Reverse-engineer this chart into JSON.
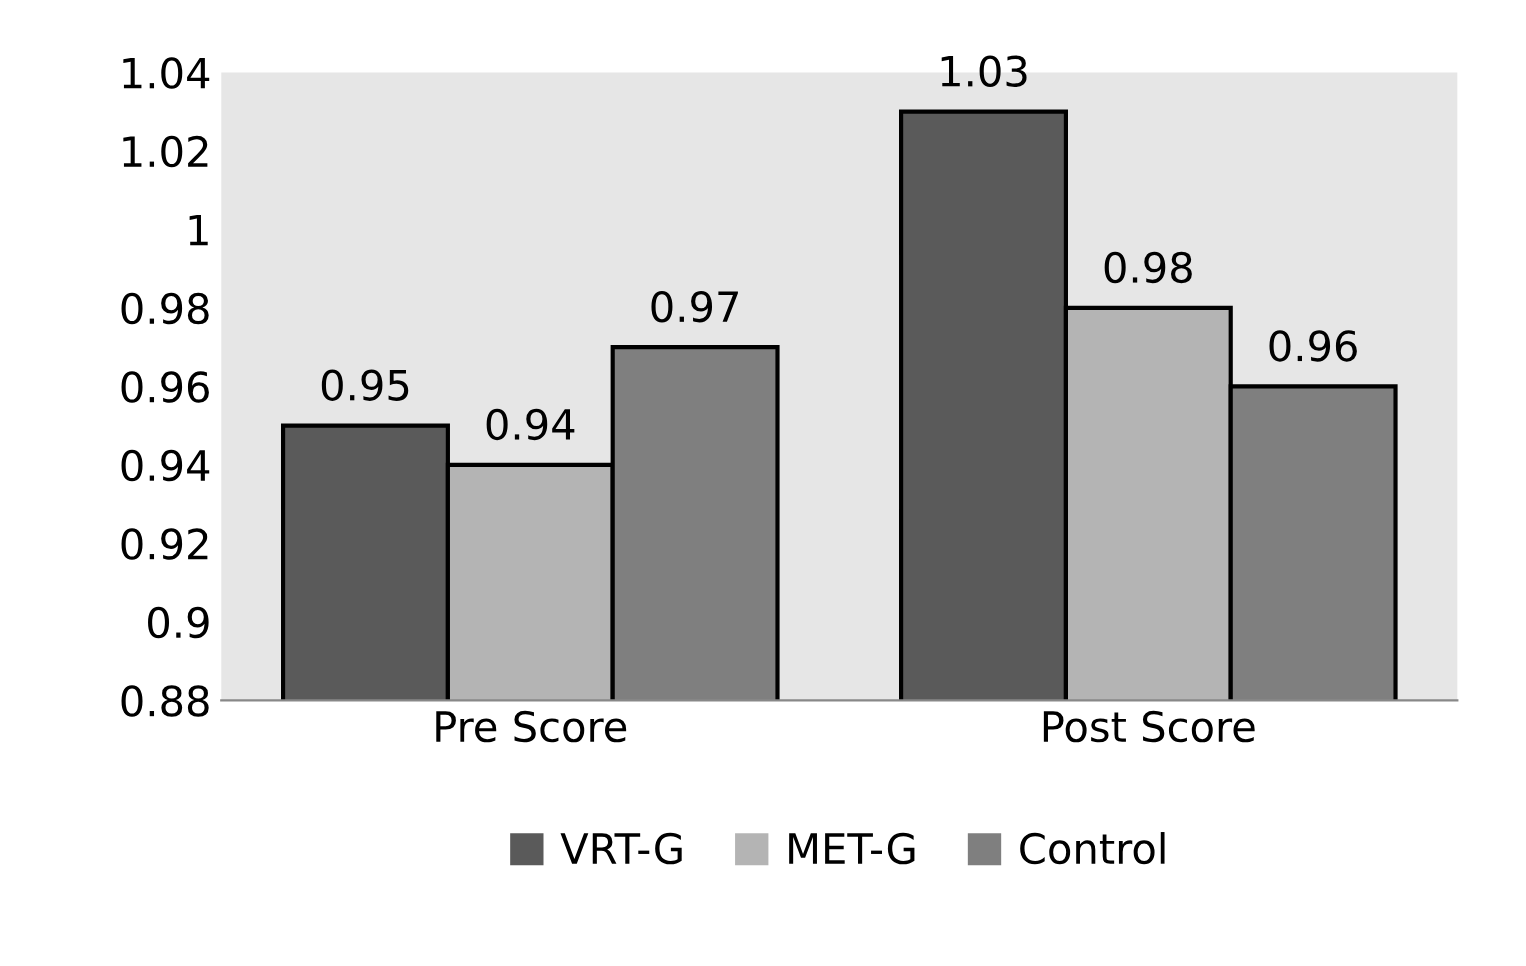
{
  "chart_data": {
    "type": "bar",
    "categories": [
      "Pre Score",
      "Post Score"
    ],
    "series": [
      {
        "name": "VRT-G",
        "color": "#5a5a5a",
        "values": [
          0.95,
          1.03
        ]
      },
      {
        "name": "MET-G",
        "color": "#b4b4b4",
        "values": [
          0.94,
          0.98
        ]
      },
      {
        "name": "Control",
        "color": "#7f7f7f",
        "values": [
          0.97,
          0.96
        ]
      }
    ],
    "ylim": [
      0.88,
      1.04
    ],
    "yticks": [
      0.88,
      0.9,
      0.92,
      0.94,
      0.96,
      0.98,
      1,
      1.02,
      1.04
    ],
    "data_labels": true,
    "grid": false,
    "legend": "bottom"
  }
}
